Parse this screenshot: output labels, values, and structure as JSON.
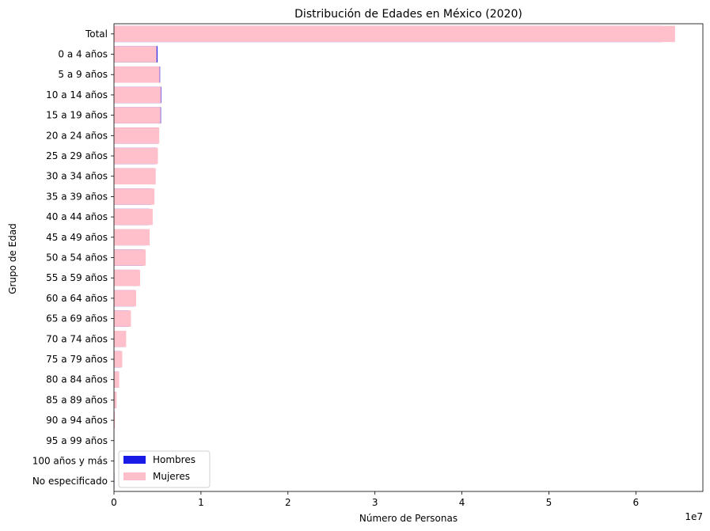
{
  "chart_data": {
    "type": "bar",
    "orientation": "horizontal",
    "title": "Distribución de Edades en México (2020)",
    "xlabel": "Número de Personas",
    "ylabel": "Grupo de Edad",
    "x_offset_label": "1e7",
    "x_ticks": [
      "0",
      "1",
      "2",
      "3",
      "4",
      "5",
      "6"
    ],
    "x_tick_values": [
      0,
      10000000,
      20000000,
      30000000,
      40000000,
      50000000,
      60000000
    ],
    "xlim": [
      0,
      67700000
    ],
    "grid": false,
    "legend_position": "lower-left",
    "categories": [
      "Total",
      "0 a 4 años",
      "5 a 9 años",
      "10 a 14 años",
      "15 a 19 años",
      "20 a 24 años",
      "25 a 29 años",
      "30 a 34 años",
      "35 a 39 años",
      "40 a 44 años",
      "45 a 49 años",
      "50 a 54 años",
      "55 a 59 años",
      "60 a 64 años",
      "65 a 69 años",
      "70 a 74 años",
      "75 a 79 años",
      "80 a 84 años",
      "85 a 89 años",
      "90 a 94 años",
      "95 a 99 años",
      "100 años y más",
      "No especificado"
    ],
    "series": [
      {
        "name": "Hombres",
        "color": "#1a1ae6",
        "values": [
          62900000,
          5000000,
          5300000,
          5450000,
          5400000,
          5100000,
          4850000,
          4550000,
          4300000,
          4050000,
          3750000,
          3350000,
          2800000,
          2350000,
          1750000,
          1250000,
          800000,
          500000,
          250000,
          90000,
          20000,
          5000,
          50000
        ]
      },
      {
        "name": "Mujeres",
        "color": "#ffc0cb",
        "values": [
          64500000,
          4900000,
          5250000,
          5400000,
          5350000,
          5200000,
          5050000,
          4800000,
          4650000,
          4450000,
          4100000,
          3650000,
          3000000,
          2550000,
          1950000,
          1400000,
          950000,
          600000,
          300000,
          110000,
          30000,
          7000,
          50000
        ]
      }
    ]
  }
}
